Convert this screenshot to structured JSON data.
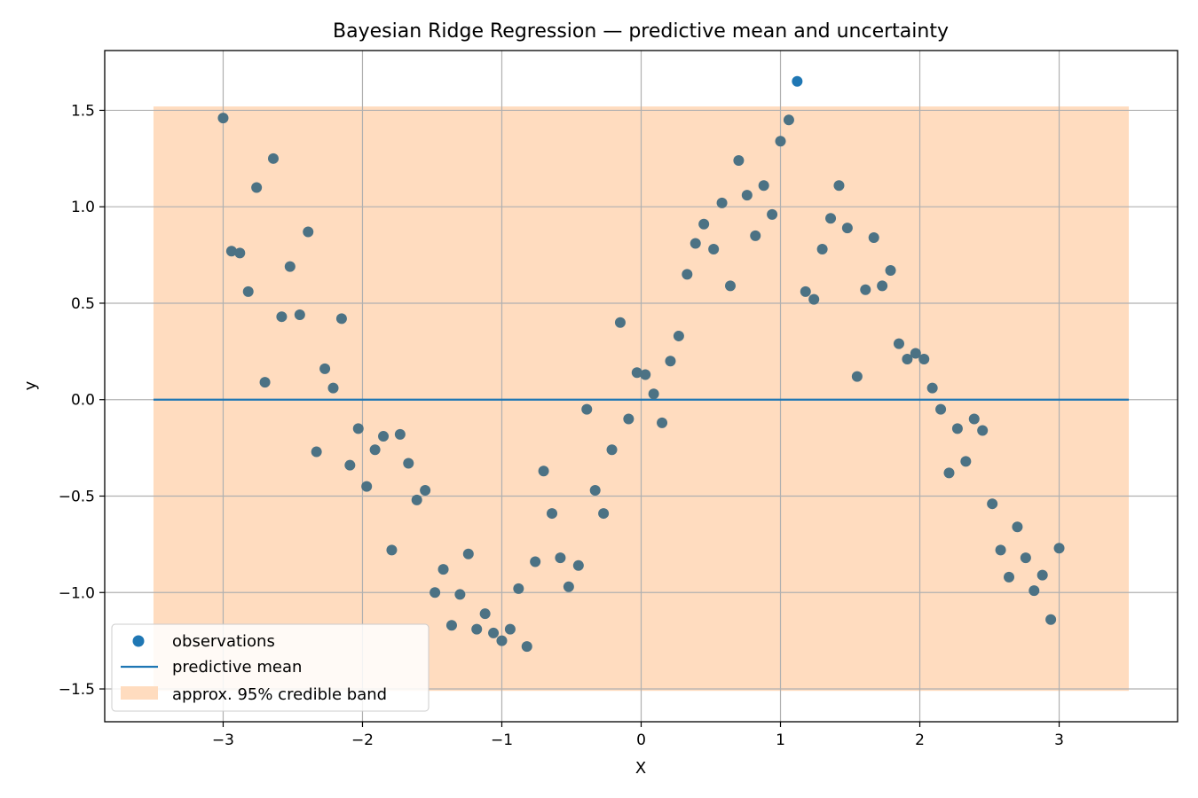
{
  "chart_data": {
    "type": "scatter",
    "title": "Bayesian Ridge Regression — predictive mean and uncertainty",
    "xlabel": "X",
    "ylabel": "y",
    "xlim": [
      -3.85,
      3.85
    ],
    "ylim": [
      -1.67,
      1.81
    ],
    "grid": true,
    "legend_position": "lower-left",
    "x_ticks": [
      {
        "value": -3,
        "label": "−3"
      },
      {
        "value": -2,
        "label": "−2"
      },
      {
        "value": -1,
        "label": "−1"
      },
      {
        "value": 0,
        "label": "0"
      },
      {
        "value": 1,
        "label": "1"
      },
      {
        "value": 2,
        "label": "2"
      },
      {
        "value": 3,
        "label": "3"
      }
    ],
    "y_ticks": [
      {
        "value": -1.5,
        "label": "−1.5"
      },
      {
        "value": -1.0,
        "label": "−1.0"
      },
      {
        "value": -0.5,
        "label": "−0.5"
      },
      {
        "value": 0.0,
        "label": "0.0"
      },
      {
        "value": 0.5,
        "label": "0.5"
      },
      {
        "value": 1.0,
        "label": "1.0"
      },
      {
        "value": 1.5,
        "label": "1.5"
      }
    ],
    "series": [
      {
        "name": "observations",
        "kind": "scatter",
        "color": "#1f77b4",
        "points": [
          [
            -3.0,
            1.46
          ],
          [
            -2.94,
            0.77
          ],
          [
            -2.88,
            0.76
          ],
          [
            -2.82,
            0.56
          ],
          [
            -2.76,
            1.1
          ],
          [
            -2.7,
            0.09
          ],
          [
            -2.64,
            1.25
          ],
          [
            -2.58,
            0.43
          ],
          [
            -2.52,
            0.69
          ],
          [
            -2.45,
            0.44
          ],
          [
            -2.39,
            0.87
          ],
          [
            -2.33,
            -0.27
          ],
          [
            -2.27,
            0.16
          ],
          [
            -2.21,
            0.06
          ],
          [
            -2.15,
            0.42
          ],
          [
            -2.09,
            -0.34
          ],
          [
            -2.03,
            -0.15
          ],
          [
            -1.97,
            -0.45
          ],
          [
            -1.91,
            -0.26
          ],
          [
            -1.85,
            -0.19
          ],
          [
            -1.79,
            -0.78
          ],
          [
            -1.73,
            -0.18
          ],
          [
            -1.67,
            -0.33
          ],
          [
            -1.61,
            -0.52
          ],
          [
            -1.55,
            -0.47
          ],
          [
            -1.48,
            -1.0
          ],
          [
            -1.42,
            -0.88
          ],
          [
            -1.36,
            -1.17
          ],
          [
            -1.3,
            -1.01
          ],
          [
            -1.24,
            -0.8
          ],
          [
            -1.18,
            -1.19
          ],
          [
            -1.12,
            -1.11
          ],
          [
            -1.06,
            -1.21
          ],
          [
            -1.0,
            -1.25
          ],
          [
            -0.94,
            -1.19
          ],
          [
            -0.88,
            -0.98
          ],
          [
            -0.82,
            -1.28
          ],
          [
            -0.76,
            -0.84
          ],
          [
            -0.7,
            -0.37
          ],
          [
            -0.64,
            -0.59
          ],
          [
            -0.58,
            -0.82
          ],
          [
            -0.52,
            -0.97
          ],
          [
            -0.45,
            -0.86
          ],
          [
            -0.39,
            -0.05
          ],
          [
            -0.33,
            -0.47
          ],
          [
            -0.27,
            -0.59
          ],
          [
            -0.21,
            -0.26
          ],
          [
            -0.15,
            0.4
          ],
          [
            -0.09,
            -0.1
          ],
          [
            -0.03,
            0.14
          ],
          [
            0.03,
            0.13
          ],
          [
            0.09,
            0.03
          ],
          [
            0.15,
            -0.12
          ],
          [
            0.21,
            0.2
          ],
          [
            0.27,
            0.33
          ],
          [
            0.33,
            0.65
          ],
          [
            0.39,
            0.81
          ],
          [
            0.45,
            0.91
          ],
          [
            0.52,
            0.78
          ],
          [
            0.58,
            1.02
          ],
          [
            0.64,
            0.59
          ],
          [
            0.7,
            1.24
          ],
          [
            0.76,
            1.06
          ],
          [
            0.82,
            0.85
          ],
          [
            0.88,
            1.11
          ],
          [
            0.94,
            0.96
          ],
          [
            1.0,
            1.34
          ],
          [
            1.06,
            1.45
          ],
          [
            1.12,
            1.65
          ],
          [
            1.18,
            0.56
          ],
          [
            1.24,
            0.52
          ],
          [
            1.3,
            0.78
          ],
          [
            1.36,
            0.94
          ],
          [
            1.42,
            1.11
          ],
          [
            1.48,
            0.89
          ],
          [
            1.55,
            0.12
          ],
          [
            1.61,
            0.57
          ],
          [
            1.67,
            0.84
          ],
          [
            1.73,
            0.59
          ],
          [
            1.79,
            0.67
          ],
          [
            1.85,
            0.29
          ],
          [
            1.91,
            0.21
          ],
          [
            1.97,
            0.24
          ],
          [
            2.03,
            0.21
          ],
          [
            2.09,
            0.06
          ],
          [
            2.15,
            -0.05
          ],
          [
            2.21,
            -0.38
          ],
          [
            2.27,
            -0.15
          ],
          [
            2.33,
            -0.32
          ],
          [
            2.39,
            -0.1
          ],
          [
            2.45,
            -0.16
          ],
          [
            2.52,
            -0.54
          ],
          [
            2.58,
            -0.78
          ],
          [
            2.64,
            -0.92
          ],
          [
            2.7,
            -0.66
          ],
          [
            2.76,
            -0.82
          ],
          [
            2.82,
            -0.99
          ],
          [
            2.88,
            -0.91
          ],
          [
            2.94,
            -1.14
          ],
          [
            3.0,
            -0.77
          ]
        ]
      },
      {
        "name": "predictive mean",
        "kind": "line",
        "color": "#1f77b4",
        "x": [
          -3.5,
          3.5
        ],
        "y": [
          0.0,
          0.0
        ]
      },
      {
        "name": "approx. 95% credible band",
        "kind": "band",
        "color": "#ffdcbf",
        "x": [
          -3.5,
          3.5
        ],
        "lower": [
          -1.51,
          -1.51
        ],
        "upper": [
          1.52,
          1.52
        ]
      }
    ],
    "overlay_color": "#4c7284"
  }
}
